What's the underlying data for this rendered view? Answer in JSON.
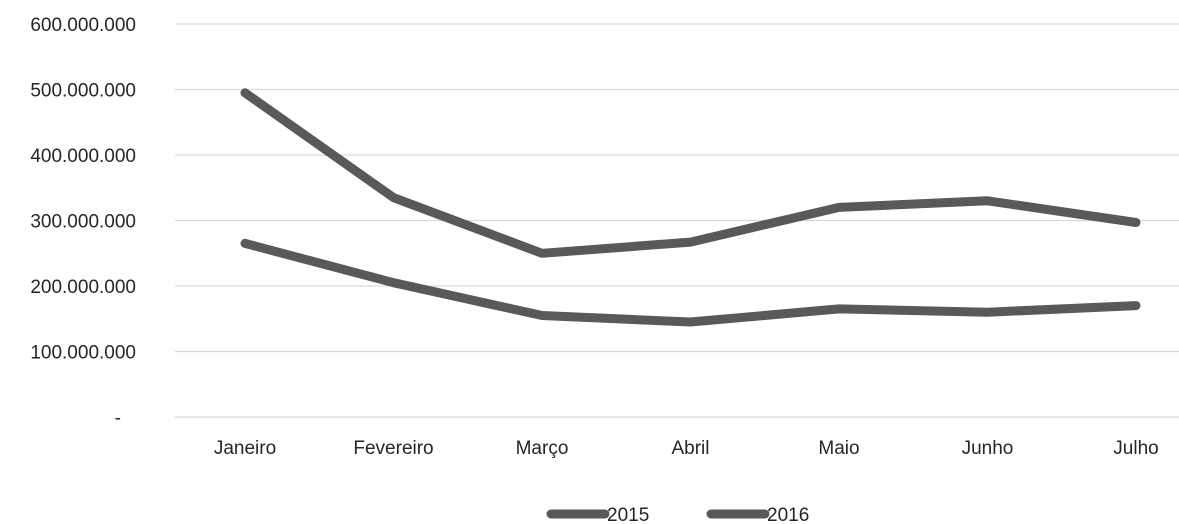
{
  "chart_data": {
    "type": "line",
    "title": "",
    "xlabel": "",
    "ylabel": "",
    "categories": [
      "Janeiro",
      "Fevereiro",
      "Março",
      "Abril",
      "Maio",
      "Junho",
      "Julho"
    ],
    "series": [
      {
        "name": "2015",
        "color": "#595959",
        "values": [
          265000000,
          205000000,
          155000000,
          145000000,
          165000000,
          160000000,
          170000000
        ]
      },
      {
        "name": "2016",
        "color": "#595959",
        "values": [
          495000000,
          335000000,
          250000000,
          267000000,
          320000000,
          330000000,
          297000000
        ]
      }
    ],
    "ylim": [
      0,
      600000000
    ],
    "yticks": [
      0,
      100000000,
      200000000,
      300000000,
      400000000,
      500000000,
      600000000
    ],
    "ytick_labels": [
      "-",
      "100.000.000",
      "200.000.000",
      "300.000.000",
      "400.000.000",
      "500.000.000",
      "600.000.000"
    ],
    "grid": true,
    "legend": "bottom-center"
  }
}
